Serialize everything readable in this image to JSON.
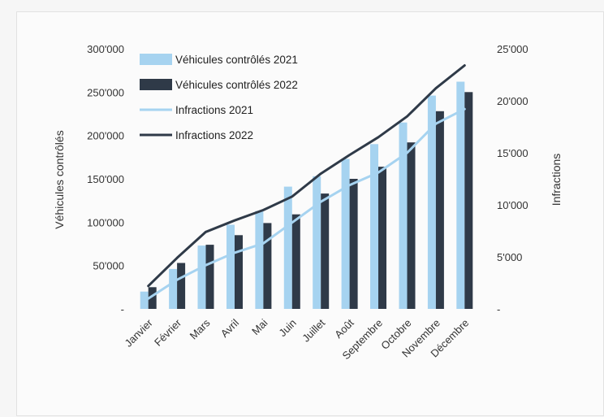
{
  "chart_data": {
    "type": "bar",
    "categories": [
      "Janvier",
      "Février",
      "Mars",
      "Avril",
      "Mai",
      "Juin",
      "Juillet",
      "Août",
      "Septembre",
      "Octobre",
      "Novembre",
      "Décembre"
    ],
    "series": [
      {
        "name": "Véhicules contrôlés 2021",
        "kind": "bar",
        "axis": "left",
        "color": "#a6d3f0",
        "values": [
          20000,
          46000,
          73000,
          97000,
          113000,
          141000,
          153000,
          173000,
          190000,
          215000,
          246000,
          262000
        ]
      },
      {
        "name": "Véhicules contrôlés 2022",
        "kind": "bar",
        "axis": "left",
        "color": "#2f3a48",
        "values": [
          25000,
          53000,
          74000,
          85000,
          99000,
          109000,
          133000,
          150000,
          164000,
          192000,
          228000,
          250000
        ]
      },
      {
        "name": "Infractions 2021",
        "kind": "line",
        "axis": "right",
        "color": "#a6d3f0",
        "values": [
          1000,
          2800,
          4200,
          5400,
          6300,
          8300,
          10300,
          11900,
          13100,
          15000,
          17800,
          19200
        ]
      },
      {
        "name": "Infractions 2022",
        "kind": "line",
        "axis": "right",
        "color": "#2f3a48",
        "values": [
          2200,
          4900,
          7400,
          8500,
          9500,
          10800,
          13000,
          14800,
          16500,
          18500,
          21200,
          23400
        ]
      }
    ],
    "ylabel": "Véhicules contrôlés",
    "y2label": "Infractions",
    "ylim": [
      0,
      300000
    ],
    "y2lim": [
      0,
      25000
    ],
    "yticks": [
      "-",
      "50'000",
      "100'000",
      "150'000",
      "200'000",
      "250'000",
      "300'000"
    ],
    "y2ticks": [
      "-",
      "5'000",
      "10'000",
      "15'000",
      "20'000",
      "25'000"
    ],
    "grid": false,
    "legend_position": "top-left"
  }
}
